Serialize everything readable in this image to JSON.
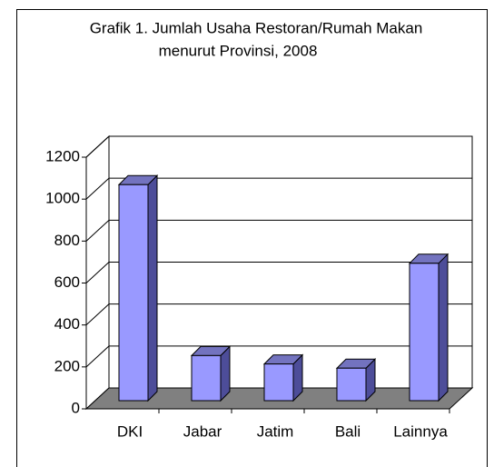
{
  "chart_data": {
    "type": "bar3d",
    "title": [
      "Grafik 1. Jumlah Usaha Restoran/Rumah Makan",
      "menurut Provinsi, 2008"
    ],
    "categories": [
      "DKI",
      "Jabar",
      "Jatim",
      "Bali",
      "Lainnya"
    ],
    "values": [
      1030,
      215,
      175,
      155,
      655
    ],
    "color": "#9999ff",
    "ylim": [
      0,
      1200
    ],
    "yticks": [
      0,
      200,
      400,
      600,
      800,
      1000,
      1200
    ],
    "grid": true
  }
}
